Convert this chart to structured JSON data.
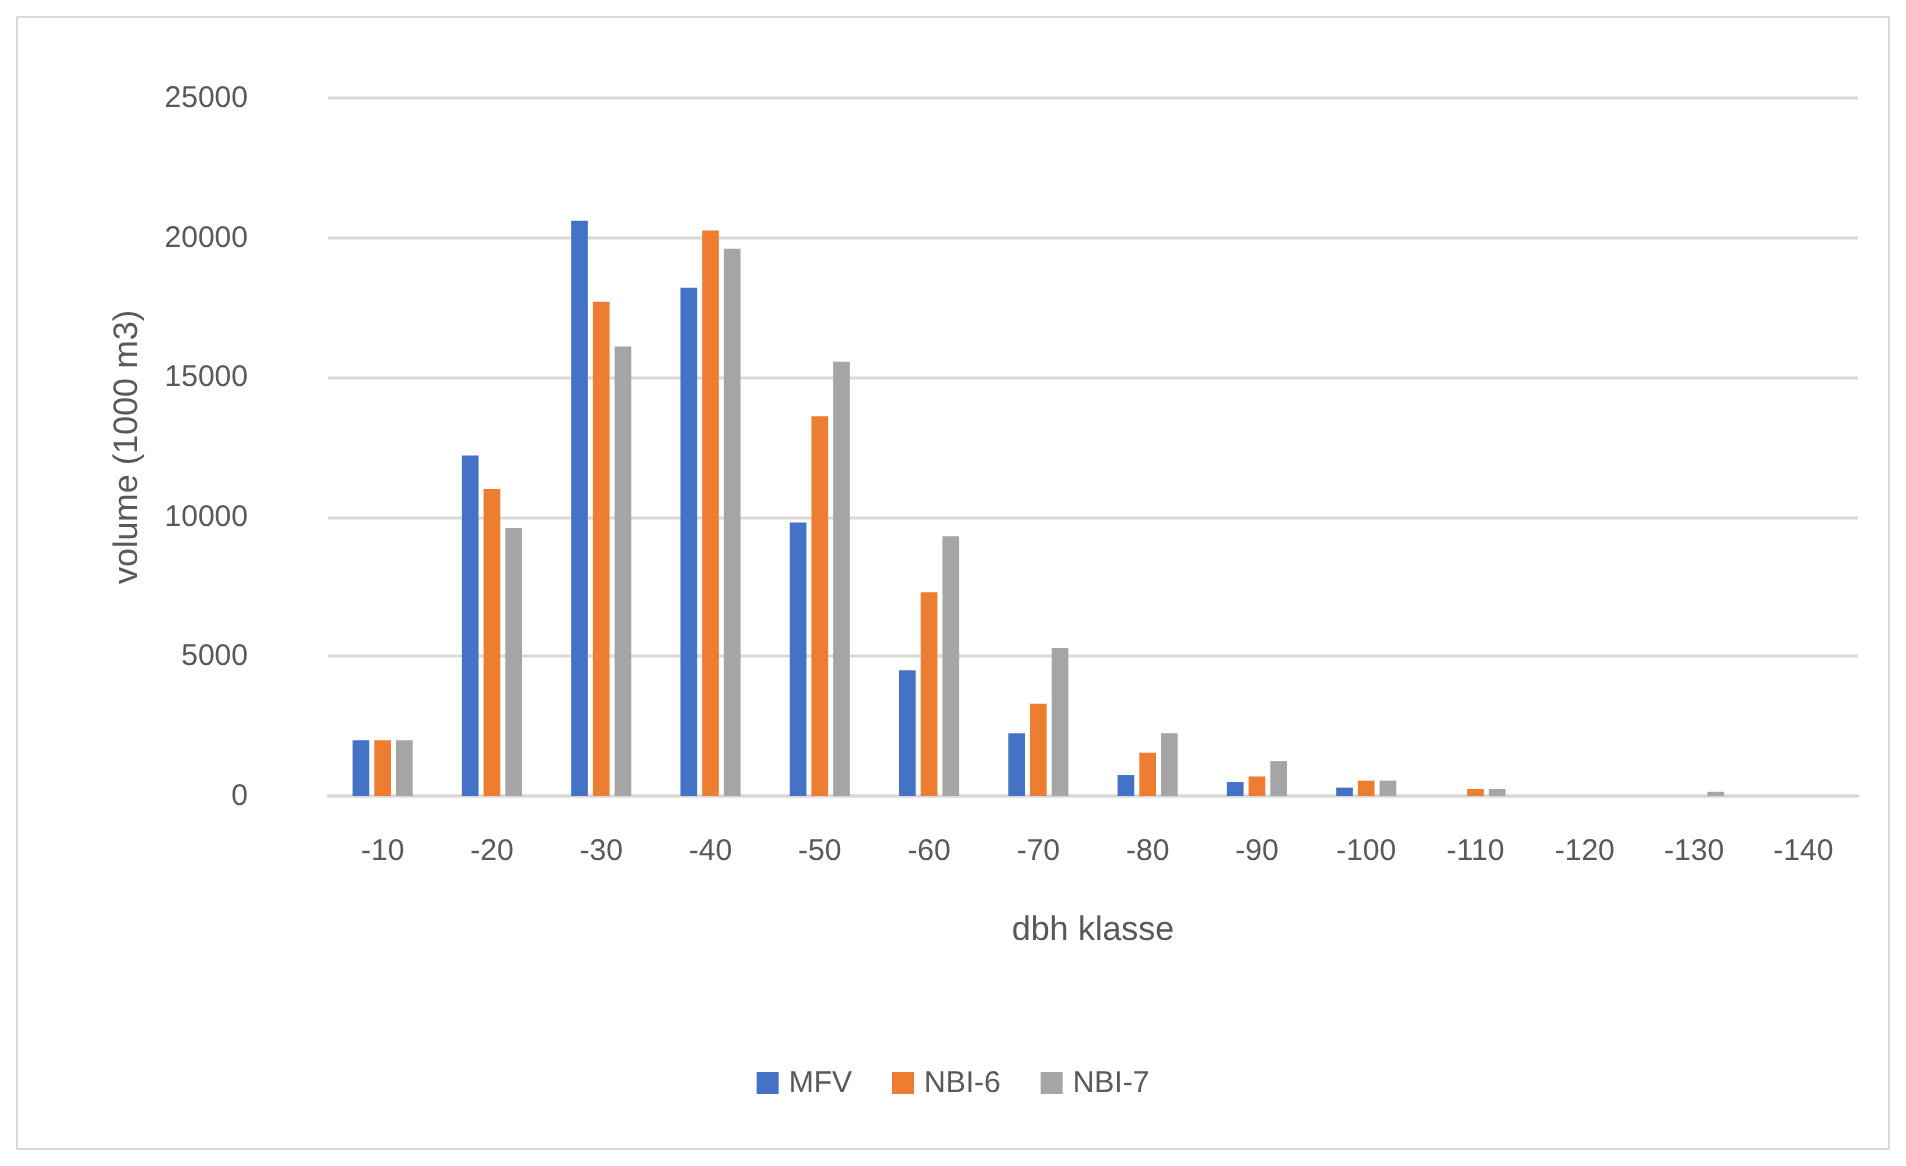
{
  "chart_data": {
    "type": "bar",
    "xlabel": "dbh klasse",
    "ylabel": "volume (1000 m3)",
    "categories": [
      "-10",
      "-20",
      "-30",
      "-40",
      "-50",
      "-60",
      "-70",
      "-80",
      "-90",
      "-100",
      "-110",
      "-120",
      "-130",
      "-140"
    ],
    "series": [
      {
        "name": "MFV",
        "color": "#4472c4",
        "values": [
          2000,
          12200,
          20600,
          18200,
          9800,
          4500,
          2250,
          750,
          500,
          300,
          0,
          0,
          0,
          0
        ]
      },
      {
        "name": "NBI-6",
        "color": "#ed7d31",
        "values": [
          2000,
          11000,
          17700,
          20250,
          13600,
          7300,
          3300,
          1550,
          700,
          550,
          250,
          0,
          0,
          0
        ]
      },
      {
        "name": "NBI-7",
        "color": "#a5a5a5",
        "values": [
          2000,
          9600,
          16100,
          19600,
          15550,
          9300,
          5300,
          2250,
          1250,
          550,
          250,
          0,
          150,
          0
        ]
      }
    ],
    "ylim": [
      0,
      25000
    ],
    "yticks": [
      0,
      5000,
      10000,
      15000,
      20000,
      25000
    ],
    "grid": "y",
    "legend": "bottom"
  }
}
